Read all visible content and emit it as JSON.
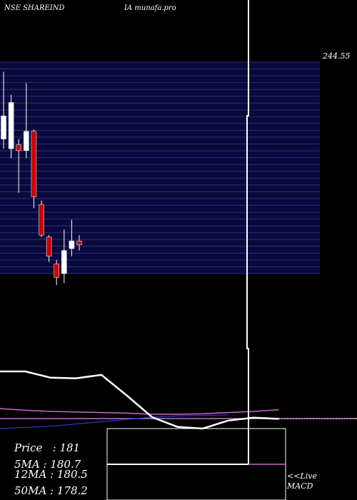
{
  "header": {
    "left": "NSE SHAREIND",
    "right": "IA munafa.pro"
  },
  "stats": {
    "price": "Price   : 181",
    "ma5": "5MA : 180.7",
    "ma12": "12MA : 180.5",
    "ma50": "50MA : 178.2"
  },
  "links": {
    "live": "<<Live",
    "macd": "MACD"
  },
  "colors": {
    "grid": "#15155a",
    "up": "#ffffff",
    "down": "#cc0000",
    "purple": "#cc66cc",
    "blue": "#3333cc"
  },
  "chart_data": {
    "type": "candlestick",
    "price_label": "244.55",
    "ylim": [
      140,
      250
    ],
    "candles": [
      {
        "o": 210.0,
        "h": 245.0,
        "l": 205.0,
        "c": 222.0
      },
      {
        "o": 205.0,
        "h": 233.0,
        "l": 200.0,
        "c": 229.0
      },
      {
        "o": 207.0,
        "h": 210.0,
        "l": 182.0,
        "c": 204.0
      },
      {
        "o": 204.0,
        "h": 239.0,
        "l": 200.0,
        "c": 214.0
      },
      {
        "o": 214.0,
        "h": 215.0,
        "l": 174.0,
        "c": 180.0
      },
      {
        "o": 176.0,
        "h": 178.0,
        "l": 159.0,
        "c": 160.0
      },
      {
        "o": 159.0,
        "h": 160.0,
        "l": 146.0,
        "c": 149.0
      },
      {
        "o": 145.0,
        "h": 147.0,
        "l": 134.0,
        "c": 138.0
      },
      {
        "o": 140.0,
        "h": 163.0,
        "l": 135.0,
        "c": 152.0
      },
      {
        "o": 153.0,
        "h": 168.0,
        "l": 149.0,
        "c": 157.0
      },
      {
        "o": 157.0,
        "h": 160.0,
        "l": 152.0,
        "c": 155.0
      }
    ],
    "indicator_white": [
      1.0,
      1.0,
      0.89,
      0.88,
      0.94,
      0.58,
      0.2,
      0.03,
      0.0,
      0.14,
      0.19,
      0.17
    ],
    "indicator_purple": [
      0.35,
      0.32,
      0.3,
      0.29,
      0.28,
      0.27,
      0.25,
      0.25,
      0.26,
      0.28,
      0.3,
      0.33
    ],
    "indicator_blue": [
      0.0,
      0.02,
      0.04,
      0.08,
      0.12,
      0.16,
      0.2,
      0.22,
      0.23,
      0.24
    ]
  }
}
